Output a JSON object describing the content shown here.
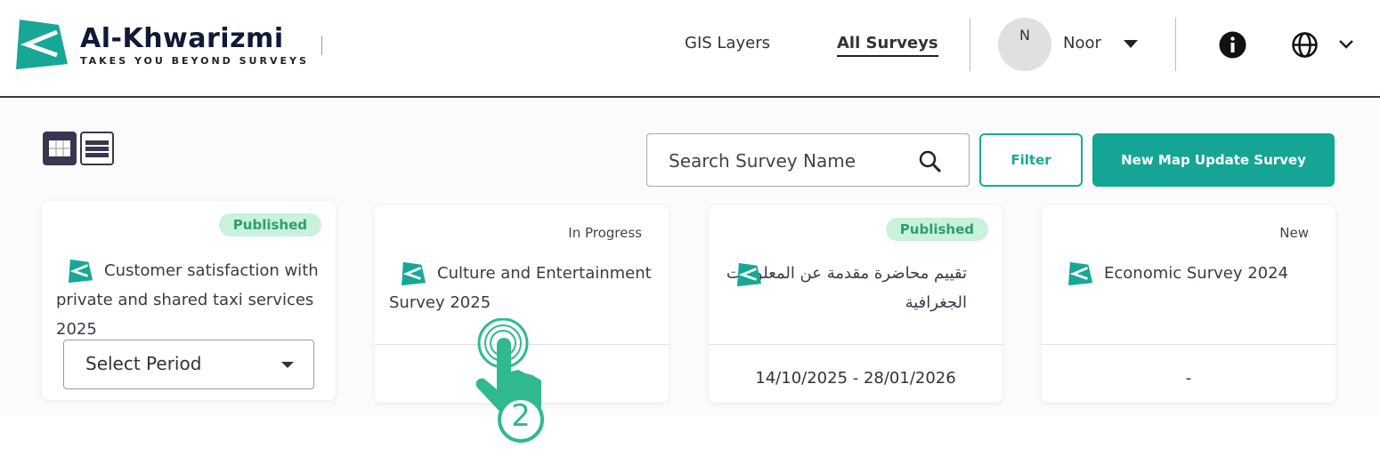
{
  "header": {
    "brand": "Al-Khwarizmi",
    "tagline": "TAKES YOU BEYOND SURVEYS",
    "nav": [
      {
        "label": "GIS Layers"
      },
      {
        "label": "All Surveys",
        "active": true
      }
    ],
    "user": {
      "initial": "N",
      "name": "Noor"
    }
  },
  "toolbar": {
    "search_placeholder": "Search Survey Name",
    "filter_label": "Filter",
    "new_label": "New Map Update Survey"
  },
  "colors": {
    "accent": "#14a595",
    "published_bg": "#c8f2dc",
    "published_text": "#2f9f6a"
  },
  "cards": [
    {
      "status": "Published",
      "title": "Customer satisfaction with private and shared taxi services    2025",
      "period_placeholder": "Select Period"
    },
    {
      "status": "In Progress",
      "title": "Culture and Entertainment Survey 2025",
      "dates": ""
    },
    {
      "status": "Published",
      "title": "تقييم محاضرة مقدمة عن المعلومات الجغرافية",
      "dates": "14/10/2025 - 28/01/2026"
    },
    {
      "status": "New",
      "title": "Economic Survey 2024",
      "dates": "-"
    }
  ],
  "overlay": {
    "step": "2"
  }
}
